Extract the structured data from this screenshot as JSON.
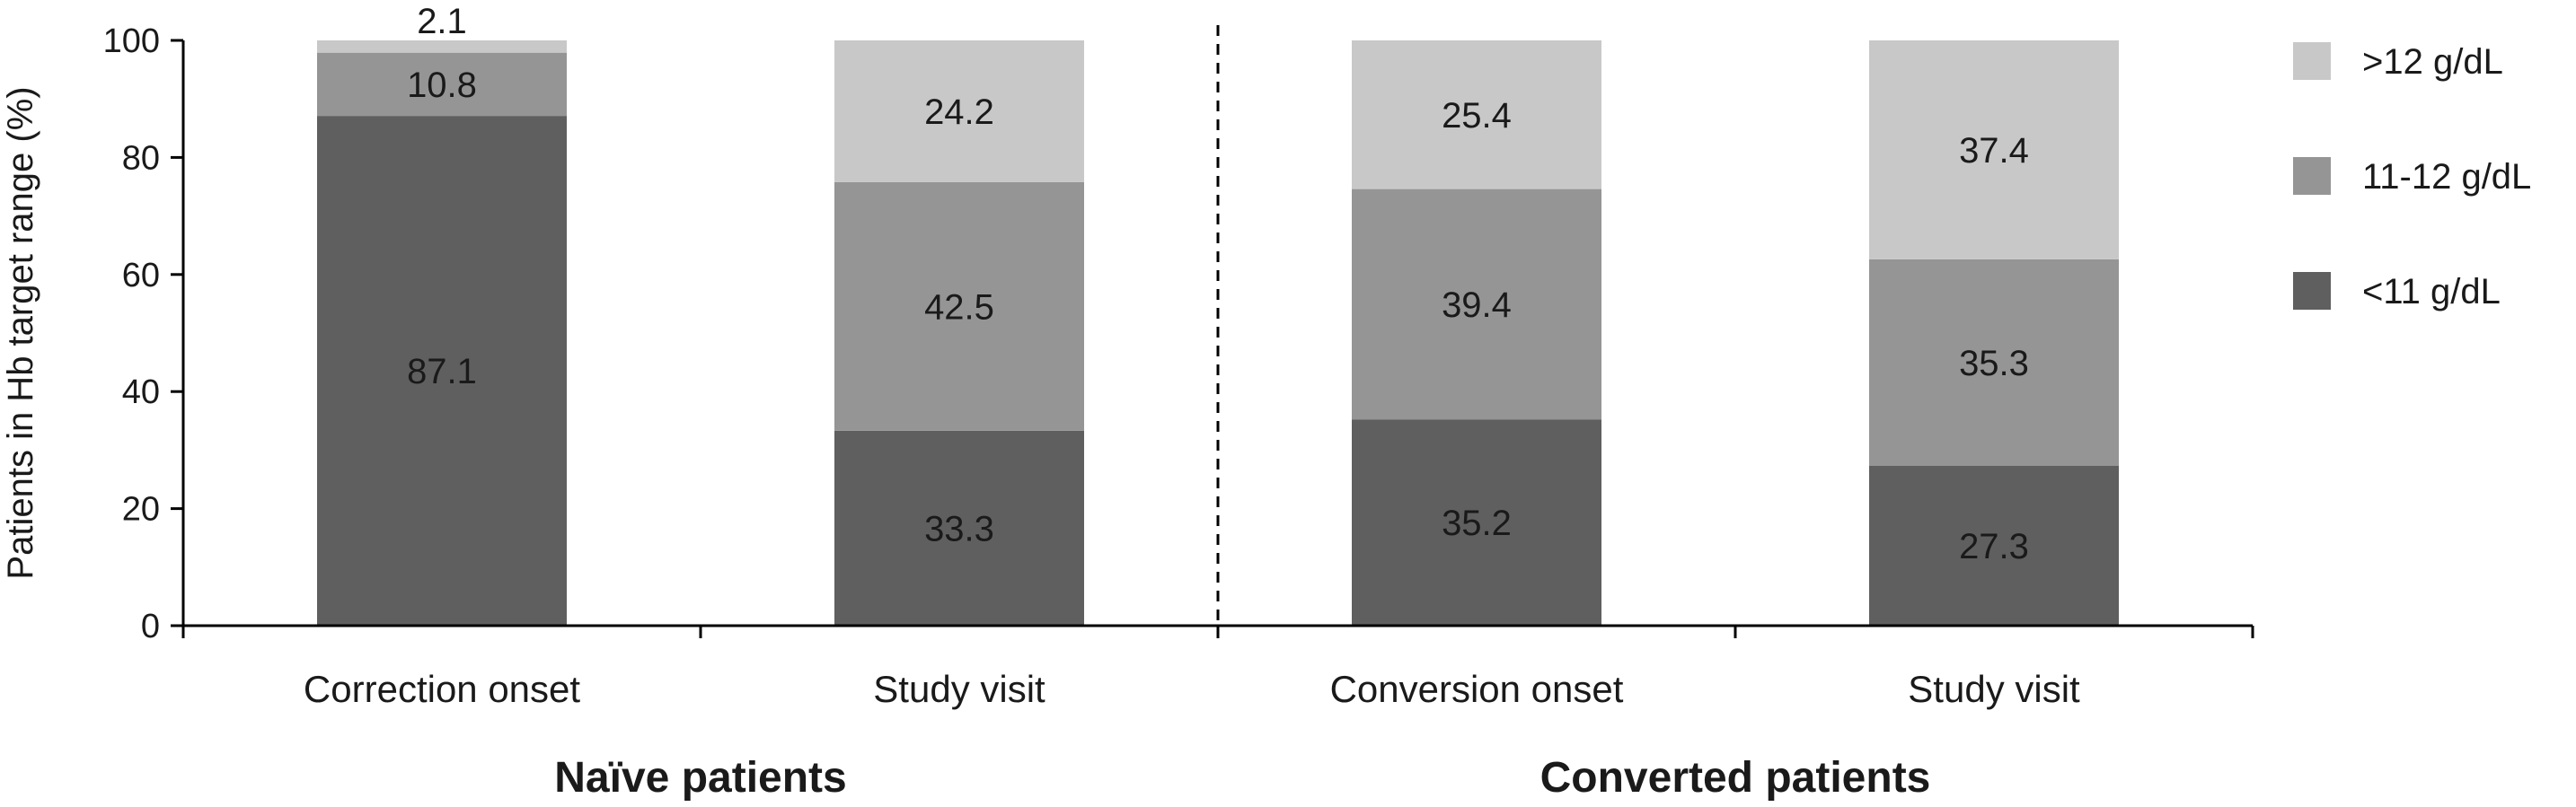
{
  "chart_data": {
    "type": "bar",
    "stacked": true,
    "categories": [
      "Correction onset",
      "Study visit",
      "Conversion onset",
      "Study visit"
    ],
    "groups": [
      {
        "label": "Naïve patients",
        "categories": [
          0,
          1
        ]
      },
      {
        "label": "Converted patients",
        "categories": [
          2,
          3
        ]
      }
    ],
    "series": [
      {
        "name": "<11 g/dL",
        "color": "#5f5f5f",
        "values": [
          87.1,
          33.3,
          35.2,
          27.3
        ]
      },
      {
        "name": "11-12 g/dL",
        "color": "#959595",
        "values": [
          10.8,
          42.5,
          39.4,
          35.3
        ]
      },
      {
        "name": ">12 g/dL",
        "color": "#c8c8c8",
        "values": [
          2.1,
          24.2,
          25.4,
          37.4
        ]
      }
    ],
    "ylabel": "Patients in Hb target range (%)",
    "xlabel": "",
    "title": "",
    "ylim": [
      0,
      100
    ],
    "yticks": [
      0,
      20,
      40,
      60,
      80,
      100
    ],
    "grid": false,
    "legend_position": "right",
    "group_separator": "dashed"
  }
}
